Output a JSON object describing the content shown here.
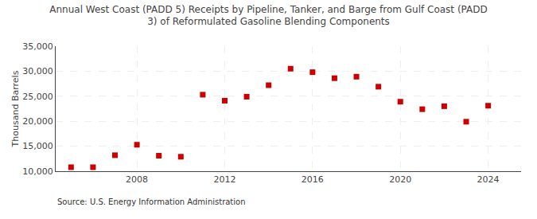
{
  "chart_data": {
    "type": "scatter",
    "title": "Annual West Coast (PADD 5) Receipts by Pipeline, Tanker, and Barge from Gulf Coast (PADD\n3) of Reformulated Gasoline Blending Components",
    "y_label": "Thousand Barrels",
    "annotations": [
      "Source: U.S. Energy Information Administration"
    ],
    "x": [
      2005,
      2006,
      2007,
      2008,
      2009,
      2010,
      2011,
      2012,
      2013,
      2014,
      2015,
      2016,
      2017,
      2018,
      2019,
      2020,
      2021,
      2022,
      2023,
      2024
    ],
    "values": [
      10800,
      10800,
      13200,
      15300,
      13100,
      12900,
      25300,
      24100,
      24900,
      27200,
      30500,
      29800,
      28600,
      28900,
      26900,
      23900,
      22400,
      23000,
      19900,
      23100
    ],
    "color": "#cc0000",
    "marker": "square",
    "xlim": [
      2004.3,
      2025.5
    ],
    "xticks": [
      2008,
      2012,
      2016,
      2020,
      2024
    ],
    "ylim": [
      10000,
      35000
    ],
    "yticks": [
      {
        "value": 10000,
        "label": "10,000"
      },
      {
        "value": 15000,
        "label": "15,000"
      },
      {
        "value": 20000,
        "label": "20,000"
      },
      {
        "value": 25000,
        "label": "25,000"
      },
      {
        "value": 30000,
        "label": "30,000"
      },
      {
        "value": 35000,
        "label": "35,000"
      }
    ],
    "grid": true
  }
}
